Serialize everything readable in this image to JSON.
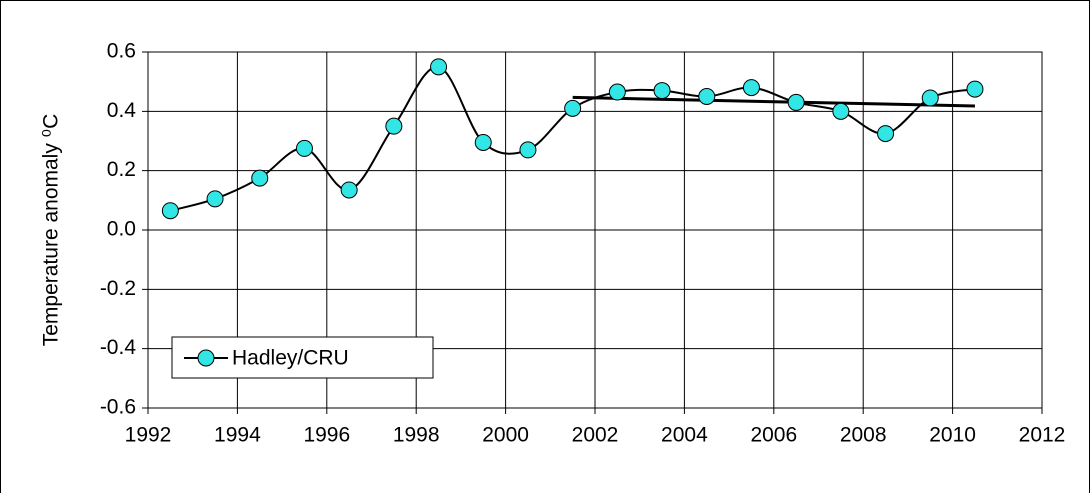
{
  "chart_data": {
    "type": "line",
    "y_label": "Temperature anomaly ⁰C",
    "x": [
      1992.5,
      1993.5,
      1994.5,
      1995.5,
      1996.5,
      1997.5,
      1998.5,
      1999.5,
      2000.5,
      2001.5,
      2002.5,
      2003.5,
      2004.5,
      2005.5,
      2006.5,
      2007.5,
      2008.5,
      2009.5,
      2010.5
    ],
    "series": [
      {
        "name": "Hadley/CRU",
        "color": "#33e6e6",
        "values": [
          0.065,
          0.105,
          0.175,
          0.275,
          0.135,
          0.35,
          0.55,
          0.295,
          0.27,
          0.41,
          0.465,
          0.47,
          0.45,
          0.48,
          0.43,
          0.4,
          0.325,
          0.445,
          0.475
        ]
      }
    ],
    "trend": {
      "x": [
        2001.5,
        2010.5
      ],
      "values": [
        0.447,
        0.418
      ],
      "color": "#000000"
    },
    "xlim": [
      1992,
      2012
    ],
    "xticks": [
      1992,
      1994,
      1996,
      1998,
      2000,
      2002,
      2004,
      2006,
      2008,
      2010,
      2012
    ],
    "ylim": [
      -0.6,
      0.6
    ],
    "yticks": [
      0.6,
      0.4,
      0.2,
      {
        "value": 0,
        "label": "0.0"
      },
      -0.2,
      -0.4,
      -0.6
    ],
    "grid": true,
    "legend": "lower left"
  }
}
